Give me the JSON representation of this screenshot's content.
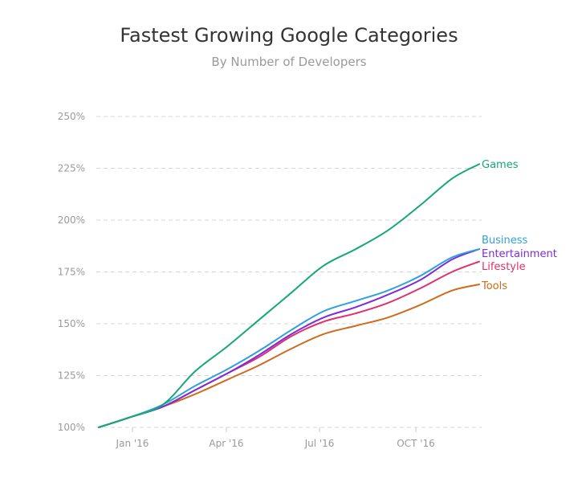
{
  "chart_data": {
    "type": "line",
    "title": "Fastest Growing Google Categories",
    "subtitle": "By Number of Developers",
    "xlabel": "",
    "ylabel": "",
    "x": [
      "2015-12",
      "2016-01",
      "2016-02",
      "2016-03",
      "2016-04",
      "2016-05",
      "2016-06",
      "2016-07",
      "2016-08",
      "2016-09",
      "2016-10",
      "2016-11",
      "2016-12"
    ],
    "x_tick_labels": [
      "Jan '16",
      "Apr '16",
      "Jul '16",
      "OCT '16"
    ],
    "y_tick_labels": [
      "100%",
      "125%",
      "150%",
      "175%",
      "200%",
      "225%",
      "250%"
    ],
    "ylim": [
      100,
      250
    ],
    "y_unit": "%",
    "grid": true,
    "legend": "inline-right",
    "series": [
      {
        "name": "Games",
        "color": "#15a873",
        "values": [
          100,
          105,
          111,
          127,
          139,
          152,
          165,
          178,
          186,
          195,
          207,
          220,
          227
        ]
      },
      {
        "name": "Business",
        "color": "#2fa0df",
        "values": [
          100,
          105,
          111,
          120,
          128,
          137,
          147,
          156,
          161,
          166,
          173,
          182,
          186
        ]
      },
      {
        "name": "Entertainment",
        "color": "#7b2cdf",
        "values": [
          100,
          105,
          110,
          118,
          126,
          135,
          145,
          153,
          158,
          164,
          171,
          181,
          186
        ]
      },
      {
        "name": "Lifestyle",
        "color": "#e0306e",
        "values": [
          100,
          105,
          110,
          118,
          126,
          134,
          144,
          151,
          155,
          160,
          167,
          175,
          180
        ]
      },
      {
        "name": "Tools",
        "color": "#cf6b1a",
        "values": [
          100,
          105,
          110,
          116,
          123,
          130,
          138,
          145,
          149,
          153,
          159,
          166,
          169
        ]
      }
    ]
  }
}
